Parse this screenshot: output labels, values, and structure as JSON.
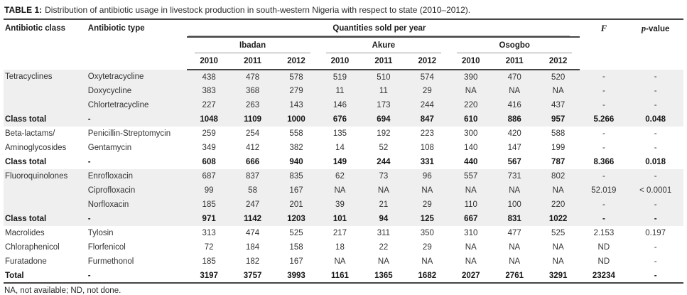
{
  "title": {
    "label": "TABLE 1:",
    "text": "Distribution of antibiotic usage in livestock production in south-western Nigeria with respect to state (2010–2012)."
  },
  "header": {
    "col_class": "Antibiotic class",
    "col_type": "Antibiotic type",
    "quantities": "Quantities sold per year",
    "states": [
      "Ibadan",
      "Akure",
      "Osogbo"
    ],
    "years": [
      "2010",
      "2011",
      "2012"
    ],
    "f_label": "F",
    "p_label_italic": "p",
    "p_label_rest": "-value"
  },
  "table": {
    "rows": [
      {
        "class": "Tetracyclines",
        "type": "Oxytetracycline",
        "values": [
          "438",
          "478",
          "578",
          "519",
          "510",
          "574",
          "390",
          "470",
          "520"
        ],
        "f": "-",
        "p": "-",
        "bold": false,
        "shade": true
      },
      {
        "class": "",
        "type": "Doxycycline",
        "values": [
          "383",
          "368",
          "279",
          "11",
          "11",
          "29",
          "NA",
          "NA",
          "NA"
        ],
        "f": "-",
        "p": "-",
        "bold": false,
        "shade": true
      },
      {
        "class": "",
        "type": "Chlortetracycline",
        "values": [
          "227",
          "263",
          "143",
          "146",
          "173",
          "244",
          "220",
          "416",
          "437"
        ],
        "f": "-",
        "p": "-",
        "bold": false,
        "shade": true
      },
      {
        "class": "Class total",
        "type": "-",
        "values": [
          "1048",
          "1109",
          "1000",
          "676",
          "694",
          "847",
          "610",
          "886",
          "957"
        ],
        "f": "5.266",
        "p": "0.048",
        "bold": true,
        "shade": true
      },
      {
        "class": "Beta-lactams/",
        "type": "Penicillin-Streptomycin",
        "values": [
          "259",
          "254",
          "558",
          "135",
          "192",
          "223",
          "300",
          "420",
          "588"
        ],
        "f": "-",
        "p": "-",
        "bold": false,
        "shade": false
      },
      {
        "class": "Aminoglycosides",
        "type": "Gentamycin",
        "values": [
          "349",
          "412",
          "382",
          "14",
          "52",
          "108",
          "140",
          "147",
          "199"
        ],
        "f": "-",
        "p": "-",
        "bold": false,
        "shade": false
      },
      {
        "class": "Class total",
        "type": "-",
        "values": [
          "608",
          "666",
          "940",
          "149",
          "244",
          "331",
          "440",
          "567",
          "787"
        ],
        "f": "8.366",
        "p": "0.018",
        "bold": true,
        "shade": false
      },
      {
        "class": "Fluoroquinolones",
        "type": "Enrofloxacin",
        "values": [
          "687",
          "837",
          "835",
          "62",
          "73",
          "96",
          "557",
          "731",
          "802"
        ],
        "f": "-",
        "p": "-",
        "bold": false,
        "shade": true
      },
      {
        "class": "",
        "type": "Ciprofloxacin",
        "values": [
          "99",
          "58",
          "167",
          "NA",
          "NA",
          "NA",
          "NA",
          "NA",
          "NA"
        ],
        "f": "52.019",
        "p": "< 0.0001",
        "bold": false,
        "shade": true
      },
      {
        "class": "",
        "type": "Norfloxacin",
        "values": [
          "185",
          "247",
          "201",
          "39",
          "21",
          "29",
          "110",
          "100",
          "220"
        ],
        "f": "-",
        "p": "-",
        "bold": false,
        "shade": true
      },
      {
        "class": "Class total",
        "type": "-",
        "values": [
          "971",
          "1142",
          "1203",
          "101",
          "94",
          "125",
          "667",
          "831",
          "1022"
        ],
        "f": "-",
        "p": "-",
        "bold": true,
        "shade": true
      },
      {
        "class": "Macrolides",
        "type": "Tylosin",
        "values": [
          "313",
          "474",
          "525",
          "217",
          "311",
          "350",
          "310",
          "477",
          "525"
        ],
        "f": "2.153",
        "p": "0.197",
        "bold": false,
        "shade": false
      },
      {
        "class": "Chloraphenicol",
        "type": "Florfenicol",
        "values": [
          "72",
          "184",
          "158",
          "18",
          "22",
          "29",
          "NA",
          "NA",
          "NA"
        ],
        "f": "ND",
        "p": "-",
        "bold": false,
        "shade": false
      },
      {
        "class": "Furatadone",
        "type": "Furmethonol",
        "values": [
          "185",
          "182",
          "167",
          "NA",
          "NA",
          "NA",
          "NA",
          "NA",
          "NA"
        ],
        "f": "ND",
        "p": "-",
        "bold": false,
        "shade": false
      },
      {
        "class": "Total",
        "type": "-",
        "values": [
          "3197",
          "3757",
          "3993",
          "1161",
          "1365",
          "1682",
          "2027",
          "2761",
          "3291"
        ],
        "f": "23234",
        "p": "-",
        "bold": true,
        "shade": false
      }
    ]
  },
  "footnote": "NA, not available; ND, not done."
}
